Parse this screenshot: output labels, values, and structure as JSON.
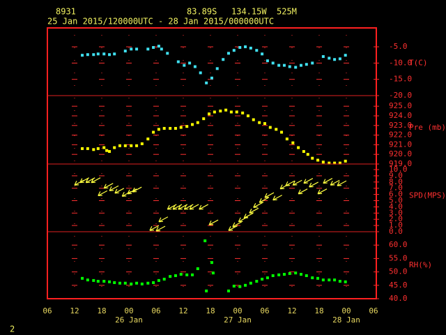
{
  "header": {
    "station": "8931",
    "lat": "83.89S",
    "lon": "134.15W",
    "elev": "525M",
    "period": "25 Jan 2015/120000UTC - 28 Jan 2015/000000UTC",
    "page": "2"
  },
  "x_axis": {
    "xlim": [
      0,
      72
    ],
    "xticks": [
      {
        "value": 0,
        "label": "06"
      },
      {
        "value": 6,
        "label": "12"
      },
      {
        "value": 12,
        "label": "18"
      },
      {
        "value": 18,
        "label": "00"
      },
      {
        "value": 24,
        "label": "06"
      },
      {
        "value": 30,
        "label": "12"
      },
      {
        "value": 36,
        "label": "18"
      },
      {
        "value": 42,
        "label": "00"
      },
      {
        "value": 48,
        "label": "06"
      },
      {
        "value": 54,
        "label": "12"
      },
      {
        "value": 60,
        "label": "18"
      },
      {
        "value": 66,
        "label": "00"
      },
      {
        "value": 72,
        "label": "06"
      }
    ],
    "date_labels": [
      {
        "value": 18,
        "label": "26 Jan"
      },
      {
        "value": 42,
        "label": "27 Jan"
      },
      {
        "value": 66,
        "label": "28 Jan"
      }
    ]
  },
  "chart_data": [
    {
      "type": "scatter",
      "label": "T(C)",
      "color": "#40e0f0",
      "ylim": [
        -20,
        0.8
      ],
      "yticks": [
        {
          "value": -5,
          "label": "-5.0"
        },
        {
          "value": -10,
          "label": "-10.0"
        },
        {
          "value": -15,
          "label": "-15.0"
        },
        {
          "value": -20,
          "label": "-20.0"
        }
      ],
      "x": [
        7.7,
        8.9,
        10.2,
        11.2,
        12.5,
        13.7,
        14.8,
        17.2,
        18.5,
        19.7,
        22.2,
        23.4,
        24.6,
        25.2,
        26.5,
        28.9,
        30.2,
        31.4,
        32.6,
        33.8,
        35.1,
        36.3,
        37.5,
        38.8,
        40.0,
        41.2,
        42.5,
        43.7,
        44.9,
        46.2,
        47.4,
        48.6,
        49.8,
        51.1,
        52.3,
        53.5,
        54.8,
        56.0,
        57.2,
        58.5,
        60.9,
        62.2,
        63.4,
        64.6,
        65.8
      ],
      "values": [
        -7.6,
        -7.4,
        -7.4,
        -7.2,
        -7.2,
        -7.4,
        -7.2,
        -6.3,
        -5.7,
        -5.7,
        -5.7,
        -5.2,
        -4.8,
        -5.7,
        -7.0,
        -9.6,
        -10.7,
        -10.0,
        -11.1,
        -13.0,
        -16.1,
        -14.6,
        -11.7,
        -8.9,
        -7.0,
        -6.1,
        -5.2,
        -5.0,
        -5.4,
        -6.1,
        -7.2,
        -9.3,
        -10.0,
        -10.7,
        -10.7,
        -11.1,
        -11.3,
        -10.7,
        -10.4,
        -10.0,
        -8.0,
        -8.5,
        -8.9,
        -8.7,
        -7.6
      ]
    },
    {
      "type": "scatter",
      "label": "Pre (mb)",
      "color": "#ffff00",
      "ylim": [
        919,
        926.1
      ],
      "yticks": [
        {
          "value": 925,
          "label": "925.0"
        },
        {
          "value": 924,
          "label": "924.0"
        },
        {
          "value": 923,
          "label": "923.0"
        },
        {
          "value": 922,
          "label": "922.0"
        },
        {
          "value": 921,
          "label": "921.0"
        },
        {
          "value": 920,
          "label": "920.0"
        },
        {
          "value": 919,
          "label": "919.0"
        }
      ],
      "x": [
        7.7,
        8.9,
        10.2,
        11.2,
        12.5,
        13.1,
        13.7,
        14.8,
        16.0,
        17.2,
        18.5,
        19.7,
        20.9,
        22.2,
        23.4,
        24.6,
        25.8,
        27.1,
        28.3,
        29.5,
        30.8,
        32.0,
        33.2,
        34.5,
        35.7,
        36.9,
        38.2,
        39.4,
        40.6,
        41.8,
        43.1,
        44.3,
        45.5,
        46.8,
        48.0,
        49.2,
        50.5,
        51.7,
        52.9,
        54.2,
        55.4,
        56.6,
        57.5,
        58.5,
        59.7,
        60.9,
        62.2,
        63.4,
        64.6,
        65.8
      ],
      "values": [
        920.6,
        920.6,
        920.5,
        920.6,
        920.7,
        920.4,
        920.3,
        920.7,
        920.9,
        920.9,
        920.9,
        920.9,
        921.1,
        921.6,
        922.3,
        922.6,
        922.7,
        922.7,
        922.7,
        922.8,
        922.9,
        923.1,
        923.3,
        923.7,
        924.2,
        924.4,
        924.5,
        924.6,
        924.4,
        924.4,
        924.3,
        924.0,
        923.6,
        923.3,
        923.2,
        922.8,
        922.6,
        922.3,
        921.6,
        921.2,
        920.7,
        920.3,
        920.0,
        919.6,
        919.4,
        919.2,
        919.1,
        919.1,
        919.1,
        919.3
      ]
    },
    {
      "type": "arrow",
      "label": "SPD(MPS)",
      "color": "#ffff40",
      "ylim": [
        0,
        10.9
      ],
      "yticks": [
        {
          "value": 10,
          "label": "10.0"
        },
        {
          "value": 9,
          "label": "9.0"
        },
        {
          "value": 8,
          "label": "8.0"
        },
        {
          "value": 7,
          "label": "7.0"
        },
        {
          "value": 6,
          "label": "6.0"
        },
        {
          "value": 5,
          "label": "5.0"
        },
        {
          "value": 4,
          "label": "4.0"
        },
        {
          "value": 3,
          "label": "3.0"
        },
        {
          "value": 2,
          "label": "2.0"
        },
        {
          "value": 1,
          "label": "1.0"
        },
        {
          "value": 0,
          "label": "0.0"
        }
      ],
      "x": [
        6.0,
        7.2,
        8.5,
        9.7,
        11.2,
        12.5,
        13.7,
        14.9,
        16.5,
        17.7,
        18.8,
        22.6,
        24.0,
        24.6,
        26.5,
        27.7,
        28.9,
        30.2,
        31.4,
        33.5,
        35.7,
        40.0,
        40.9,
        42.2,
        43.4,
        44.6,
        45.5,
        46.8,
        48.0,
        49.8,
        51.4,
        52.6,
        54.2,
        55.4,
        56.6,
        57.8,
        59.7,
        60.9,
        62.5,
        64.0
      ],
      "values": [
        7.5,
        7.9,
        7.9,
        7.9,
        5.8,
        7.0,
        6.6,
        6.2,
        5.7,
        6.1,
        6.4,
        0.2,
        0.1,
        1.6,
        3.6,
        3.6,
        3.6,
        3.6,
        3.6,
        3.6,
        1.1,
        0.2,
        0.8,
        1.6,
        2.2,
        3.0,
        3.9,
        4.7,
        5.5,
        5.1,
        6.9,
        7.4,
        7.5,
        6.1,
        7.8,
        7.2,
        6.1,
        7.8,
        7.5,
        7.4
      ]
    },
    {
      "type": "scatter",
      "label": "RH(%)",
      "color": "#00ff00",
      "ylim": [
        40,
        65
      ],
      "yticks": [
        {
          "value": 60,
          "label": "60.0"
        },
        {
          "value": 55,
          "label": "55.0"
        },
        {
          "value": 50,
          "label": "50.0"
        },
        {
          "value": 45,
          "label": "45.0"
        },
        {
          "value": 40,
          "label": "40.0"
        }
      ],
      "x": [
        7.7,
        8.9,
        10.2,
        11.2,
        12.5,
        13.7,
        14.8,
        16.0,
        17.2,
        18.5,
        19.7,
        20.9,
        22.2,
        23.4,
        24.6,
        25.8,
        27.1,
        28.3,
        29.5,
        30.8,
        32.0,
        33.2,
        34.8,
        35.1,
        36.3,
        36.6,
        40.0,
        41.2,
        42.5,
        43.7,
        44.9,
        46.2,
        47.4,
        48.6,
        49.8,
        51.1,
        52.3,
        53.5,
        54.8,
        56.0,
        57.2,
        58.5,
        59.7,
        60.9,
        62.2,
        63.4,
        64.6,
        65.8
      ],
      "values": [
        47.6,
        47.0,
        46.8,
        46.5,
        46.5,
        46.3,
        46.0,
        45.8,
        45.8,
        45.5,
        45.8,
        45.5,
        45.8,
        46.0,
        46.8,
        47.3,
        48.3,
        48.6,
        49.1,
        48.9,
        48.9,
        51.2,
        61.6,
        42.9,
        53.5,
        49.6,
        42.9,
        44.7,
        44.5,
        45.0,
        45.8,
        46.5,
        47.3,
        47.8,
        48.6,
        48.9,
        49.1,
        49.4,
        49.6,
        49.1,
        48.6,
        47.8,
        47.6,
        47.0,
        47.0,
        47.0,
        46.5,
        46.3
      ]
    }
  ]
}
